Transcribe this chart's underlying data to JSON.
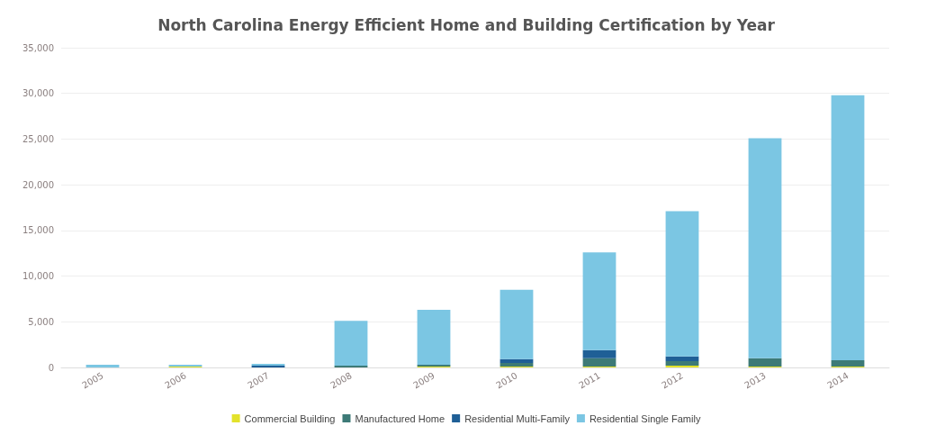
{
  "chart_data": {
    "type": "bar",
    "stacked": true,
    "title": "North Carolina Energy Efficient Home and Building Certification by Year",
    "categories": [
      "2005",
      "2006",
      "2007",
      "2008",
      "2009",
      "2010",
      "2011",
      "2012",
      "2013",
      "2014"
    ],
    "series": [
      {
        "name": "Commercial Building",
        "color": "#e3e22b",
        "values": [
          0,
          100,
          0,
          0,
          100,
          100,
          100,
          200,
          100,
          100
        ]
      },
      {
        "name": "Manufactured Home",
        "color": "#3d7a77",
        "values": [
          0,
          0,
          0,
          200,
          200,
          400,
          900,
          500,
          900,
          700
        ]
      },
      {
        "name": "Residential Multi-Family",
        "color": "#1f5f96",
        "values": [
          0,
          0,
          200,
          0,
          0,
          400,
          900,
          500,
          0,
          0
        ]
      },
      {
        "name": "Residential Single Family",
        "color": "#7bc6e3",
        "values": [
          300,
          200,
          200,
          4900,
          6000,
          7600,
          10700,
          15900,
          24100,
          29000
        ]
      }
    ],
    "ylim": [
      0,
      35000
    ],
    "yticks": [
      0,
      {
        "value": 5000,
        "label": "5,000"
      },
      {
        "value": 10000,
        "label": "10,000"
      },
      {
        "value": 15000,
        "label": "15,000"
      },
      {
        "value": 20000,
        "label": "20,000"
      },
      {
        "value": 25000,
        "label": "25,000"
      },
      {
        "value": 30000,
        "label": "30,000"
      },
      {
        "value": 35000,
        "label": "35,000"
      }
    ],
    "grid": "y",
    "legend": "bottom"
  }
}
